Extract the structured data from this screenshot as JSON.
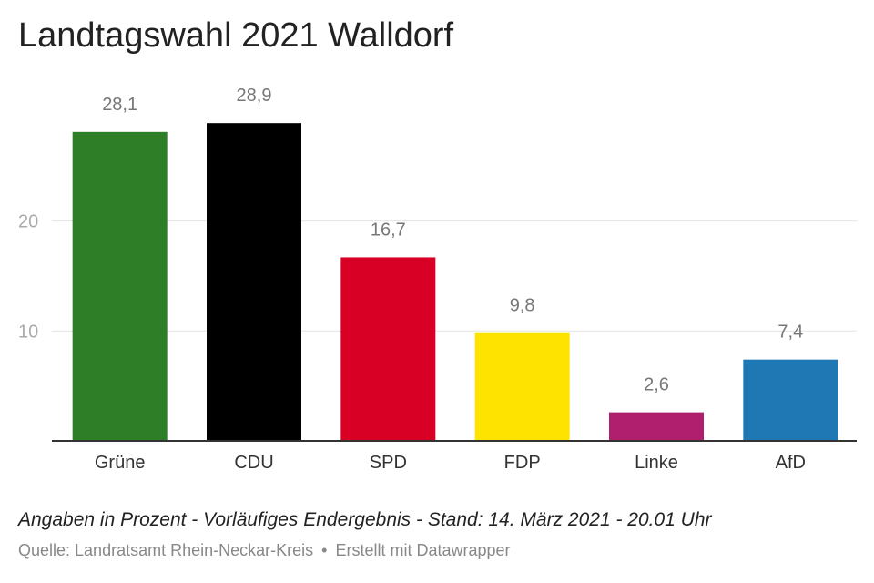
{
  "title": "Landtagswahl 2021 Walldorf",
  "note": "Angaben in Prozent - Vorläufiges Endergebnis - Stand: 14. März 2021 - 20.01 Uhr",
  "source": "Quelle: Landratsamt Rhein-Neckar-Kreis",
  "separator": "•",
  "credit": "Erstellt mit Datawrapper",
  "chart_data": {
    "type": "bar",
    "title": "Landtagswahl 2021 Walldorf",
    "categories": [
      "Grüne",
      "CDU",
      "SPD",
      "FDP",
      "Linke",
      "AfD"
    ],
    "values": [
      28.1,
      28.9,
      16.7,
      9.8,
      2.6,
      7.4
    ],
    "value_labels": [
      "28,1",
      "28,9",
      "16,7",
      "9,8",
      "2,6",
      "7,4"
    ],
    "colors": [
      "#2e7d27",
      "#000000",
      "#d80024",
      "#ffe300",
      "#b01f6e",
      "#1f77b4"
    ],
    "yticks": [
      10,
      20
    ],
    "ylim": [
      0,
      30
    ],
    "grid": true,
    "legend": "none"
  }
}
